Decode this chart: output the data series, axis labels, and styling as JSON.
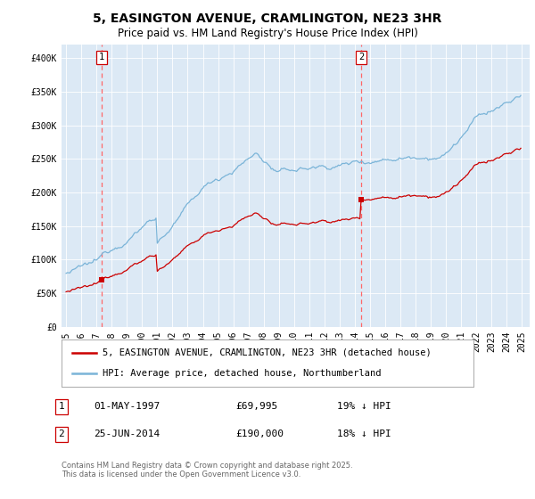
{
  "title": "5, EASINGTON AVENUE, CRAMLINGTON, NE23 3HR",
  "subtitle": "Price paid vs. HM Land Registry's House Price Index (HPI)",
  "ylim": [
    0,
    420000
  ],
  "yticks": [
    0,
    50000,
    100000,
    150000,
    200000,
    250000,
    300000,
    350000,
    400000
  ],
  "ytick_labels": [
    "£0",
    "£50K",
    "£100K",
    "£150K",
    "£200K",
    "£250K",
    "£300K",
    "£350K",
    "£400K"
  ],
  "background_color": "#dce9f5",
  "hpi_color": "#7ab4d8",
  "price_color": "#cc0000",
  "vline_color": "#ff6666",
  "sale1_price": 69995,
  "sale2_price": 190000,
  "sale1_year": 1997,
  "sale1_month": 5,
  "sale2_year": 2014,
  "sale2_month": 6,
  "legend_label_red": "5, EASINGTON AVENUE, CRAMLINGTON, NE23 3HR (detached house)",
  "legend_label_blue": "HPI: Average price, detached house, Northumberland",
  "sale1_label": "1",
  "sale1_date_str": "01-MAY-1997",
  "sale1_price_str": "£69,995",
  "sale1_hpi_str": "19% ↓ HPI",
  "sale2_label": "2",
  "sale2_date_str": "25-JUN-2014",
  "sale2_price_str": "£190,000",
  "sale2_hpi_str": "18% ↓ HPI",
  "footer": "Contains HM Land Registry data © Crown copyright and database right 2025.\nThis data is licensed under the Open Government Licence v3.0.",
  "title_fontsize": 10,
  "subtitle_fontsize": 8.5,
  "tick_fontsize": 7,
  "legend_fontsize": 7.5
}
